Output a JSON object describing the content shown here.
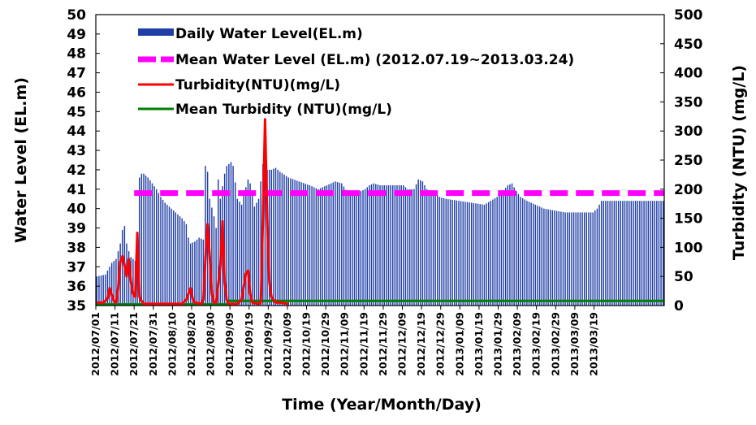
{
  "chart_data": {
    "type": "bar+line",
    "title": "",
    "xlabel": "Time  (Year/Month/Day)",
    "ylabel_left": "Water  Level (EL.m)",
    "ylabel_right": "Turbidity (NTU)  (mg/L)",
    "ylim_left": [
      35,
      50
    ],
    "ylim_right": [
      0,
      500
    ],
    "yticks_left": [
      "35",
      "36",
      "37",
      "38",
      "39",
      "40",
      "41",
      "42",
      "43",
      "44",
      "45",
      "46",
      "47",
      "48",
      "49",
      "50"
    ],
    "yticks_right": [
      "0",
      "50",
      "100",
      "150",
      "200",
      "250",
      "300",
      "350",
      "400",
      "450",
      "500"
    ],
    "x_start": "2012-07-01",
    "x_end": "2013-03-24",
    "x_tick_labels": [
      "2012/07/01",
      "2012/07/11",
      "2012/07/21",
      "2012/07/31",
      "2012/08/10",
      "2012/08/20",
      "2012/08/30",
      "2012/09/09",
      "2012/09/19",
      "2012/09/29",
      "2012/10/09",
      "2012/10/19",
      "2012/10/29",
      "2012/11/09",
      "2012/11/19",
      "2012/11/29",
      "2012/12/09",
      "2012/12/19",
      "2012/12/29",
      "2013/01/09",
      "2013/01/19",
      "2013/01/29",
      "2013/02/09",
      "2013/02/19",
      "2013/02/29",
      "2013/03/09",
      "2013/03/19"
    ],
    "legend": {
      "placement": "top-left",
      "entries": [
        "Daily Water Level(EL.m)",
        "Mean Water Level (EL.m) (2012.07.19~2013.03.24)",
        "Turbidity(NTU)(mg/L)",
        "Mean Turbidity (NTU)(mg/L)"
      ]
    },
    "series": [
      {
        "name": "Daily Water Level(EL.m)",
        "type": "bar",
        "axis": "left",
        "color": "#1f3ea6",
        "anchors": [
          [
            0,
            36.5
          ],
          [
            4,
            36.6
          ],
          [
            7,
            37.2
          ],
          [
            9,
            37.4
          ],
          [
            11,
            38.2
          ],
          [
            12,
            38.9
          ],
          [
            13,
            39.1
          ],
          [
            14,
            38.2
          ],
          [
            15,
            37.8
          ],
          [
            16,
            37.5
          ],
          [
            18,
            37.3
          ],
          [
            19,
            38.0
          ],
          [
            20,
            41.6
          ],
          [
            21,
            41.8
          ],
          [
            22,
            41.8
          ],
          [
            24,
            41.6
          ],
          [
            26,
            41.3
          ],
          [
            28,
            41.0
          ],
          [
            30,
            40.6
          ],
          [
            32,
            40.3
          ],
          [
            35,
            40.0
          ],
          [
            38,
            39.7
          ],
          [
            40,
            39.5
          ],
          [
            42,
            39.2
          ],
          [
            43,
            38.5
          ],
          [
            44,
            38.2
          ],
          [
            46,
            38.3
          ],
          [
            48,
            38.5
          ],
          [
            50,
            38.4
          ],
          [
            51,
            42.2
          ],
          [
            52,
            41.9
          ],
          [
            53,
            40.5
          ],
          [
            55,
            39.6
          ],
          [
            56,
            39.0
          ],
          [
            57,
            41.5
          ],
          [
            58,
            40.5
          ],
          [
            60,
            41.8
          ],
          [
            61,
            42.2
          ],
          [
            63,
            42.4
          ],
          [
            64,
            42.2
          ],
          [
            66,
            40.5
          ],
          [
            68,
            40.2
          ],
          [
            70,
            41.1
          ],
          [
            71,
            41.5
          ],
          [
            72,
            41.3
          ],
          [
            74,
            40.1
          ],
          [
            76,
            40.5
          ],
          [
            78,
            42.3
          ],
          [
            80,
            42.0
          ],
          [
            82,
            42.0
          ],
          [
            84,
            42.1
          ],
          [
            86,
            41.9
          ],
          [
            90,
            41.6
          ],
          [
            95,
            41.4
          ],
          [
            100,
            41.2
          ],
          [
            104,
            41.0
          ],
          [
            108,
            41.2
          ],
          [
            112,
            41.4
          ],
          [
            115,
            41.3
          ],
          [
            118,
            40.8
          ],
          [
            122,
            40.8
          ],
          [
            126,
            41.0
          ],
          [
            128,
            41.2
          ],
          [
            130,
            41.3
          ],
          [
            133,
            41.2
          ],
          [
            138,
            41.2
          ],
          [
            144,
            41.2
          ],
          [
            146,
            41.0
          ],
          [
            149,
            41.0
          ],
          [
            151,
            41.5
          ],
          [
            153,
            41.4
          ],
          [
            155,
            41.0
          ],
          [
            158,
            40.8
          ],
          [
            161,
            40.6
          ],
          [
            164,
            40.5
          ],
          [
            170,
            40.4
          ],
          [
            176,
            40.3
          ],
          [
            182,
            40.2
          ],
          [
            185,
            40.4
          ],
          [
            188,
            40.6
          ],
          [
            190,
            40.8
          ],
          [
            193,
            41.2
          ],
          [
            195,
            41.3
          ],
          [
            197,
            40.9
          ],
          [
            199,
            40.6
          ],
          [
            202,
            40.4
          ],
          [
            206,
            40.2
          ],
          [
            210,
            40.0
          ],
          [
            215,
            39.9
          ],
          [
            220,
            39.8
          ],
          [
            225,
            39.8
          ],
          [
            229,
            39.8
          ],
          [
            233,
            39.8
          ],
          [
            235,
            40.0
          ],
          [
            237,
            40.4
          ],
          [
            239,
            40.4
          ]
        ]
      },
      {
        "name": "Mean Water Level (EL.m) (2012.07.19~2013.03.24)",
        "type": "line",
        "axis": "left",
        "style": "dashed",
        "color": "#ff00ff",
        "x_start": "2012-07-19",
        "value": 40.8
      },
      {
        "name": "Turbidity(NTU)(mg/L)",
        "type": "line",
        "axis": "right",
        "color": "#ff0000",
        "anchors": [
          [
            0,
            5
          ],
          [
            3,
            5
          ],
          [
            5,
            12
          ],
          [
            6,
            30
          ],
          [
            7,
            18
          ],
          [
            8,
            8
          ],
          [
            9,
            5
          ],
          [
            10,
            30
          ],
          [
            11,
            75
          ],
          [
            12,
            85
          ],
          [
            13,
            70
          ],
          [
            14,
            50
          ],
          [
            15,
            80
          ],
          [
            16,
            40
          ],
          [
            17,
            20
          ],
          [
            18,
            15
          ],
          [
            19,
            125
          ],
          [
            20,
            15
          ],
          [
            21,
            8
          ],
          [
            22,
            3
          ],
          [
            40,
            3
          ],
          [
            42,
            10
          ],
          [
            44,
            30
          ],
          [
            45,
            12
          ],
          [
            46,
            5
          ],
          [
            49,
            3
          ],
          [
            50,
            10
          ],
          [
            51,
            80
          ],
          [
            52,
            140
          ],
          [
            53,
            85
          ],
          [
            54,
            20
          ],
          [
            55,
            5
          ],
          [
            56,
            5
          ],
          [
            58,
            70
          ],
          [
            59,
            145
          ],
          [
            60,
            40
          ],
          [
            61,
            10
          ],
          [
            62,
            3
          ],
          [
            66,
            3
          ],
          [
            68,
            10
          ],
          [
            70,
            55
          ],
          [
            71,
            60
          ],
          [
            72,
            20
          ],
          [
            73,
            5
          ],
          [
            76,
            3
          ],
          [
            77,
            5
          ],
          [
            78,
            150
          ],
          [
            79,
            320
          ],
          [
            80,
            150
          ],
          [
            81,
            40
          ],
          [
            82,
            15
          ],
          [
            83,
            10
          ],
          [
            84,
            5
          ],
          [
            86,
            5
          ],
          [
            90,
            3
          ]
        ]
      },
      {
        "name": "Mean Turbidity (NTU)(mg/L)",
        "type": "line",
        "axis": "right",
        "color": "#008000",
        "segments": [
          {
            "x_start": "2012-07-01",
            "x_end": "2012-09-01",
            "value": 2
          },
          {
            "x_start": "2012-09-01",
            "x_end": "2013-03-24",
            "value": 8
          }
        ]
      }
    ]
  }
}
